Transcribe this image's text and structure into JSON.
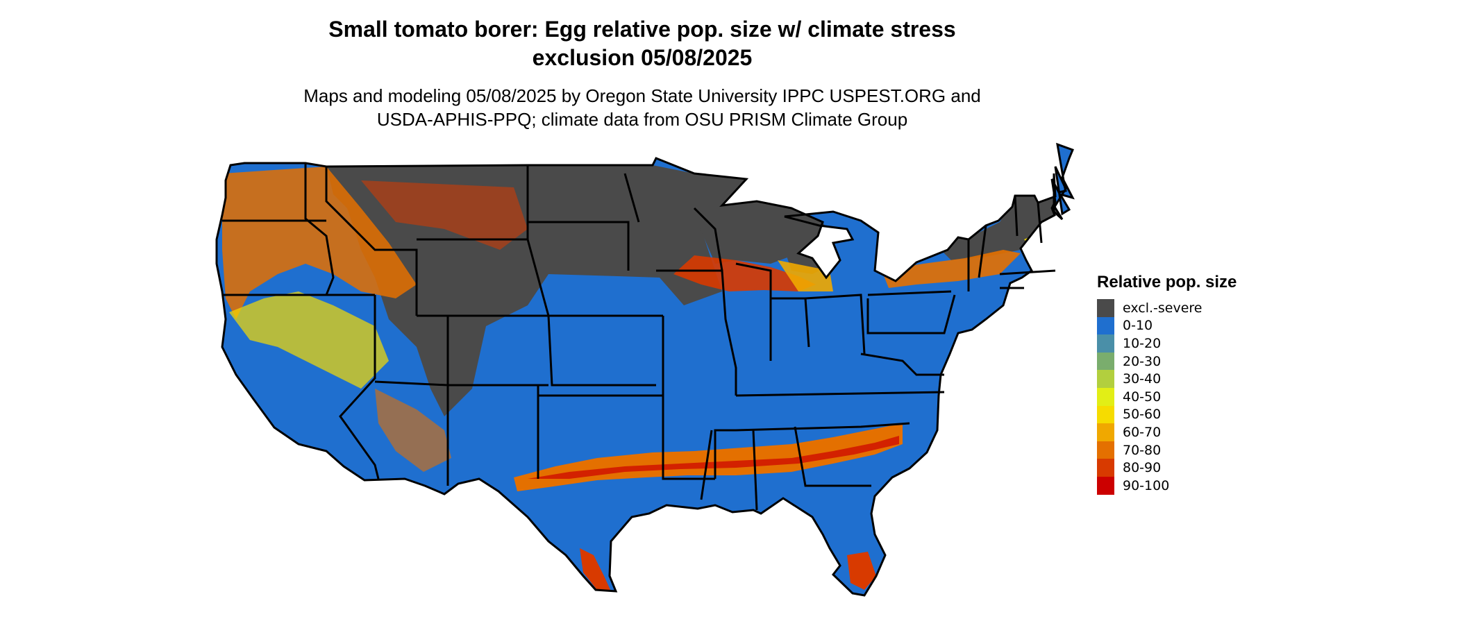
{
  "title_line1": "Small tomato borer: Egg relative pop. size w/ climate stress",
  "title_line2": "exclusion 05/08/2025",
  "subtitle_line1": "Maps and modeling 05/08/2025 by Oregon State University IPPC USPEST.ORG and",
  "subtitle_line2": "USDA-APHIS-PPQ; climate data from OSU PRISM Climate Group",
  "legend": {
    "title": "Relative pop. size",
    "items": [
      {
        "label": "excl.-severe",
        "color": "#4a4a4a"
      },
      {
        "label": "0-10",
        "color": "#1f6fcf"
      },
      {
        "label": "10-20",
        "color": "#4a8fa8"
      },
      {
        "label": "20-30",
        "color": "#7aad6d"
      },
      {
        "label": "30-40",
        "color": "#b2cf3e"
      },
      {
        "label": "40-50",
        "color": "#e2ee16"
      },
      {
        "label": "50-60",
        "color": "#f6dc00"
      },
      {
        "label": "60-70",
        "color": "#f0a800"
      },
      {
        "label": "70-80",
        "color": "#e47000"
      },
      {
        "label": "80-90",
        "color": "#d83a00"
      },
      {
        "label": "90-100",
        "color": "#cc0000"
      }
    ]
  },
  "colors": {
    "excluded": "#4a4a4a",
    "low": "#1f6fcf",
    "yellow": "#f6dc00",
    "orange": "#e47000",
    "red": "#d83a00",
    "border": "#000000"
  }
}
